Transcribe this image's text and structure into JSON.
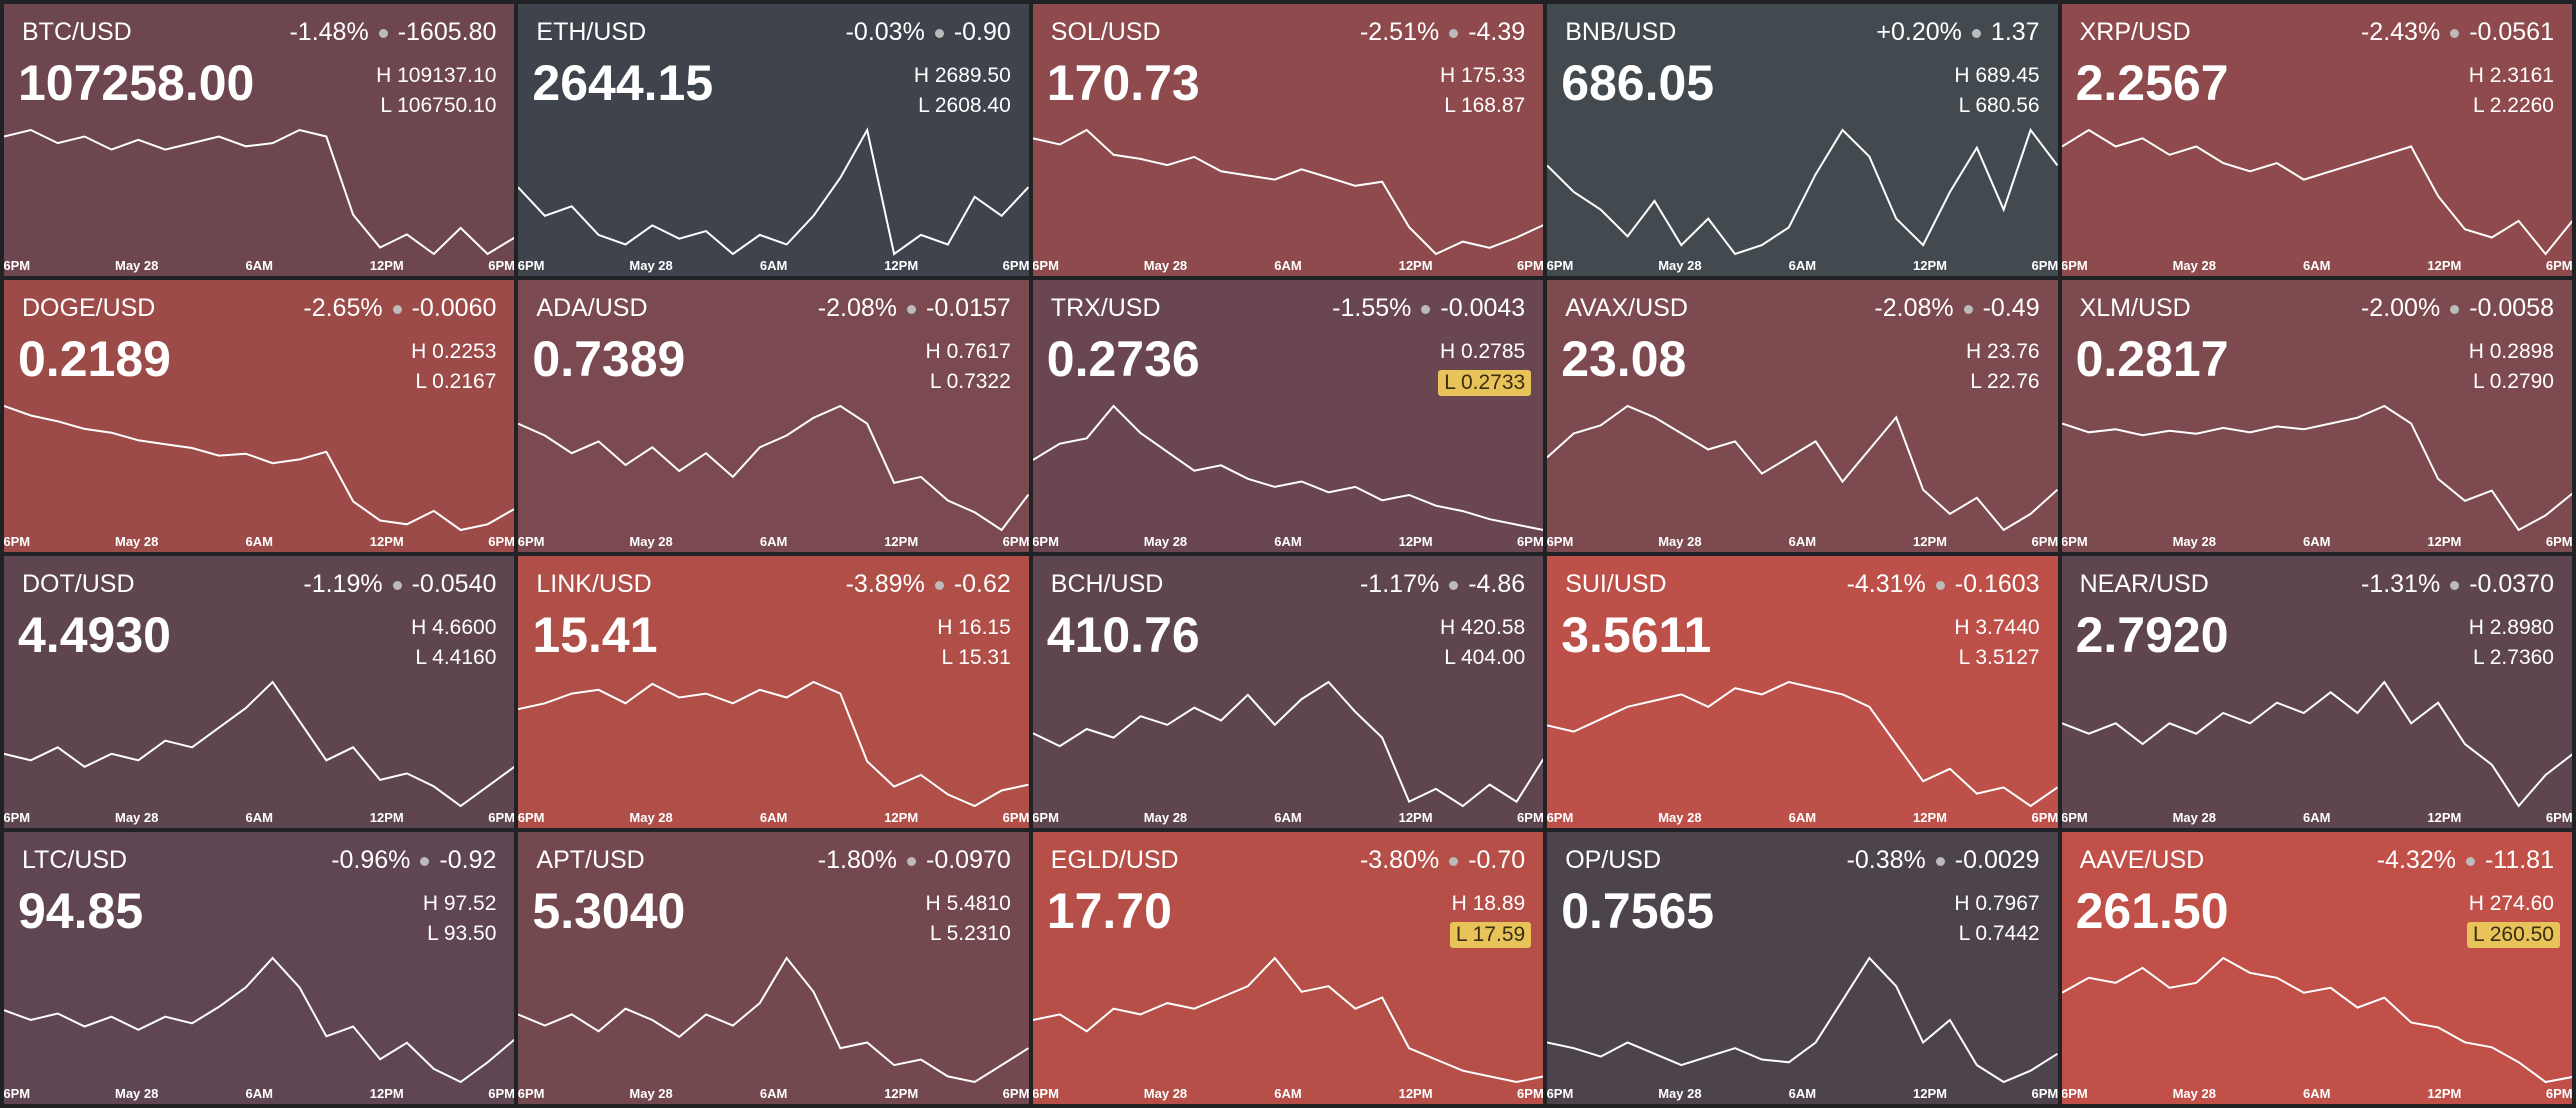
{
  "labels": {
    "high": "H",
    "low": "L"
  },
  "x_labels": [
    "6PM",
    "May 28",
    "6AM",
    "12PM",
    "6PM"
  ],
  "tiles": [
    {
      "pair": "BTC/USD",
      "change_pct": "-1.48%",
      "change": "-1605.80",
      "price": "107258.00",
      "high": "109137.10",
      "low": "106750.10",
      "low_highlight": false,
      "color": "#6e4650",
      "points": [
        108800,
        108900,
        108700,
        108800,
        108600,
        108750,
        108600,
        108700,
        108800,
        108650,
        108700,
        108900,
        108800,
        107600,
        107100,
        107300,
        107000,
        107400,
        107000,
        107250
      ]
    },
    {
      "pair": "ETH/USD",
      "change_pct": "-0.03%",
      "change": "-0.90",
      "price": "2644.15",
      "high": "2689.50",
      "low": "2608.40",
      "low_highlight": false,
      "color": "#3e434c",
      "points": [
        2655,
        2640,
        2645,
        2630,
        2625,
        2635,
        2628,
        2632,
        2620,
        2630,
        2625,
        2640,
        2660,
        2685,
        2620,
        2630,
        2625,
        2650,
        2640,
        2655
      ]
    },
    {
      "pair": "SOL/USD",
      "change_pct": "-2.51%",
      "change": "-4.39",
      "price": "170.73",
      "high": "175.33",
      "low": "168.87",
      "low_highlight": false,
      "color": "#8e4a4c",
      "points": [
        174.8,
        174.5,
        175.2,
        174.0,
        173.8,
        173.5,
        173.9,
        173.2,
        173.0,
        172.8,
        173.3,
        172.9,
        172.5,
        172.7,
        170.5,
        169.2,
        169.8,
        169.5,
        170.0,
        170.6
      ]
    },
    {
      "pair": "BNB/USD",
      "change_pct": "+0.20%",
      "change": "1.37",
      "price": "686.05",
      "high": "689.45",
      "low": "680.56",
      "low_highlight": false,
      "color": "#434a4f",
      "points": [
        686.5,
        685.0,
        684.0,
        682.5,
        684.5,
        682.0,
        683.5,
        681.5,
        682.0,
        683.0,
        686.0,
        688.5,
        687.0,
        683.5,
        682.0,
        685.0,
        687.5,
        684.0,
        688.5,
        686.5
      ]
    },
    {
      "pair": "XRP/USD",
      "change_pct": "-2.43%",
      "change": "-0.0561",
      "price": "2.2567",
      "high": "2.3161",
      "low": "2.2260",
      "low_highlight": false,
      "color": "#8e4a4c",
      "points": [
        2.3,
        2.31,
        2.3,
        2.305,
        2.295,
        2.3,
        2.29,
        2.285,
        2.29,
        2.28,
        2.285,
        2.29,
        2.295,
        2.3,
        2.27,
        2.25,
        2.245,
        2.255,
        2.235,
        2.255
      ]
    },
    {
      "pair": "DOGE/USD",
      "change_pct": "-2.65%",
      "change": "-0.0060",
      "price": "0.2189",
      "high": "0.2253",
      "low": "0.2167",
      "low_highlight": false,
      "color": "#9c4b48",
      "points": [
        0.224,
        0.2235,
        0.2232,
        0.2228,
        0.2226,
        0.2222,
        0.222,
        0.2218,
        0.2214,
        0.2215,
        0.221,
        0.2212,
        0.2216,
        0.219,
        0.218,
        0.2178,
        0.2185,
        0.2175,
        0.2178,
        0.2186
      ]
    },
    {
      "pair": "ADA/USD",
      "change_pct": "-2.08%",
      "change": "-0.0157",
      "price": "0.7389",
      "high": "0.7617",
      "low": "0.7322",
      "low_highlight": false,
      "color": "#7a4a50",
      "points": [
        0.751,
        0.749,
        0.746,
        0.748,
        0.744,
        0.747,
        0.743,
        0.746,
        0.742,
        0.747,
        0.749,
        0.752,
        0.754,
        0.751,
        0.741,
        0.742,
        0.738,
        0.736,
        0.733,
        0.739
      ]
    },
    {
      "pair": "TRX/USD",
      "change_pct": "-1.55%",
      "change": "-0.0043",
      "price": "0.2736",
      "high": "0.2785",
      "low": "0.2733",
      "low_highlight": true,
      "color": "#6a4650",
      "points": [
        0.2762,
        0.2768,
        0.277,
        0.2782,
        0.2772,
        0.2765,
        0.2758,
        0.276,
        0.2755,
        0.2752,
        0.2754,
        0.275,
        0.2752,
        0.2747,
        0.2749,
        0.2745,
        0.2743,
        0.274,
        0.2738,
        0.2736
      ]
    },
    {
      "pair": "AVAX/USD",
      "change_pct": "-2.08%",
      "change": "-0.49",
      "price": "23.08",
      "high": "23.76",
      "low": "22.76",
      "low_highlight": false,
      "color": "#7c4a4f",
      "points": [
        23.3,
        23.45,
        23.5,
        23.62,
        23.55,
        23.45,
        23.35,
        23.4,
        23.2,
        23.3,
        23.4,
        23.15,
        23.35,
        23.55,
        23.1,
        22.95,
        23.05,
        22.85,
        22.95,
        23.1
      ]
    },
    {
      "pair": "XLM/USD",
      "change_pct": "-2.00%",
      "change": "-0.0058",
      "price": "0.2817",
      "high": "0.2898",
      "low": "0.2790",
      "low_highlight": false,
      "color": "#7c4a4f",
      "points": [
        0.2868,
        0.2862,
        0.2864,
        0.286,
        0.2863,
        0.2861,
        0.2865,
        0.2862,
        0.2866,
        0.2864,
        0.2868,
        0.2872,
        0.288,
        0.2868,
        0.283,
        0.2815,
        0.2822,
        0.2795,
        0.2805,
        0.282
      ]
    },
    {
      "pair": "DOT/USD",
      "change_pct": "-1.19%",
      "change": "-0.0540",
      "price": "4.4930",
      "high": "4.6600",
      "low": "4.4160",
      "low_highlight": false,
      "color": "#5e4550",
      "points": [
        4.51,
        4.5,
        4.52,
        4.49,
        4.51,
        4.5,
        4.53,
        4.52,
        4.55,
        4.58,
        4.62,
        4.56,
        4.5,
        4.52,
        4.47,
        4.48,
        4.46,
        4.43,
        4.46,
        4.49
      ]
    },
    {
      "pair": "LINK/USD",
      "change_pct": "-3.89%",
      "change": "-0.62",
      "price": "15.41",
      "high": "16.15",
      "low": "15.31",
      "low_highlight": false,
      "color": "#b04f48",
      "points": [
        15.82,
        15.85,
        15.9,
        15.92,
        15.85,
        15.95,
        15.88,
        15.9,
        15.85,
        15.92,
        15.88,
        15.96,
        15.9,
        15.55,
        15.42,
        15.48,
        15.38,
        15.32,
        15.4,
        15.43
      ]
    },
    {
      "pair": "BCH/USD",
      "change_pct": "-1.17%",
      "change": "-4.86",
      "price": "410.76",
      "high": "420.58",
      "low": "404.00",
      "low_highlight": false,
      "color": "#5e4550",
      "points": [
        413.5,
        412.0,
        414.0,
        413.0,
        415.5,
        414.5,
        416.5,
        415.0,
        418.0,
        414.5,
        417.5,
        419.5,
        416.0,
        413.0,
        405.5,
        407.0,
        405.0,
        407.5,
        405.5,
        410.5
      ]
    },
    {
      "pair": "SUI/USD",
      "change_pct": "-4.31%",
      "change": "-0.1603",
      "price": "3.5611",
      "high": "3.7440",
      "low": "3.5127",
      "low_highlight": false,
      "color": "#bd5048",
      "points": [
        3.66,
        3.65,
        3.67,
        3.69,
        3.7,
        3.71,
        3.69,
        3.72,
        3.71,
        3.73,
        3.72,
        3.71,
        3.69,
        3.63,
        3.57,
        3.59,
        3.55,
        3.56,
        3.53,
        3.56
      ]
    },
    {
      "pair": "NEAR/USD",
      "change_pct": "-1.31%",
      "change": "-0.0370",
      "price": "2.7920",
      "high": "2.8980",
      "low": "2.7360",
      "low_highlight": false,
      "color": "#5e4550",
      "points": [
        2.82,
        2.81,
        2.82,
        2.8,
        2.82,
        2.81,
        2.83,
        2.82,
        2.84,
        2.83,
        2.85,
        2.83,
        2.86,
        2.82,
        2.84,
        2.8,
        2.78,
        2.74,
        2.77,
        2.79
      ]
    },
    {
      "pair": "LTC/USD",
      "change_pct": "-0.96%",
      "change": "-0.92",
      "price": "94.85",
      "high": "97.52",
      "low": "93.50",
      "low_highlight": false,
      "color": "#604652",
      "points": [
        95.8,
        95.5,
        95.7,
        95.3,
        95.6,
        95.2,
        95.6,
        95.4,
        95.9,
        96.5,
        97.4,
        96.5,
        95.0,
        95.3,
        94.3,
        94.8,
        94.0,
        93.6,
        94.2,
        94.9
      ]
    },
    {
      "pair": "APT/USD",
      "change_pct": "-1.80%",
      "change": "-0.0970",
      "price": "5.3040",
      "high": "5.4810",
      "low": "5.2310",
      "low_highlight": false,
      "color": "#74484f",
      "points": [
        5.36,
        5.34,
        5.36,
        5.33,
        5.37,
        5.35,
        5.32,
        5.36,
        5.34,
        5.38,
        5.46,
        5.4,
        5.3,
        5.31,
        5.27,
        5.28,
        5.25,
        5.24,
        5.27,
        5.3
      ]
    },
    {
      "pair": "EGLD/USD",
      "change_pct": "-3.80%",
      "change": "-0.70",
      "price": "17.70",
      "high": "18.89",
      "low": "17.59",
      "low_highlight": true,
      "color": "#b54f48",
      "points": [
        18.2,
        18.25,
        18.1,
        18.3,
        18.25,
        18.35,
        18.3,
        18.4,
        18.5,
        18.75,
        18.45,
        18.5,
        18.3,
        18.4,
        17.95,
        17.85,
        17.75,
        17.7,
        17.65,
        17.7
      ]
    },
    {
      "pair": "OP/USD",
      "change_pct": "-0.38%",
      "change": "-0.0029",
      "price": "0.7565",
      "high": "0.7967",
      "low": "0.7442",
      "low_highlight": false,
      "color": "#4d434c",
      "points": [
        0.76,
        0.758,
        0.755,
        0.76,
        0.756,
        0.752,
        0.755,
        0.758,
        0.754,
        0.753,
        0.76,
        0.775,
        0.79,
        0.78,
        0.76,
        0.768,
        0.752,
        0.746,
        0.75,
        0.756
      ]
    },
    {
      "pair": "AAVE/USD",
      "change_pct": "-4.32%",
      "change": "-11.81",
      "price": "261.50",
      "high": "274.60",
      "low": "260.50",
      "low_highlight": true,
      "color": "#c05048",
      "points": [
        270.0,
        271.5,
        271.0,
        272.5,
        270.5,
        271.0,
        273.5,
        272.0,
        271.5,
        270.0,
        270.5,
        268.5,
        269.5,
        267.0,
        266.5,
        265.0,
        264.5,
        263.0,
        261.0,
        261.5
      ]
    }
  ]
}
